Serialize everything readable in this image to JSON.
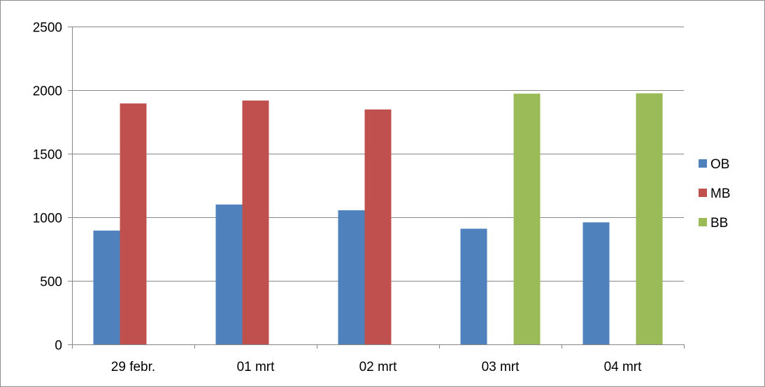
{
  "chart_data": {
    "type": "bar",
    "title": "",
    "xlabel": "",
    "ylabel": "",
    "categories": [
      "29 febr.",
      "01 mrt",
      "02 mrt",
      "03 mrt",
      "04 mrt"
    ],
    "series": [
      {
        "name": "OB",
        "color": "#4f81bd",
        "values": [
          895,
          1100,
          1055,
          910,
          960
        ]
      },
      {
        "name": "MB",
        "color": "#c0504d",
        "values": [
          1895,
          1918,
          1848,
          null,
          null
        ]
      },
      {
        "name": "BB",
        "color": "#9bbb59",
        "values": [
          null,
          null,
          null,
          1972,
          1975
        ]
      }
    ],
    "ylim": [
      0,
      2500
    ],
    "yticks": [
      "0",
      "500",
      "1000",
      "1500",
      "2000",
      "2500"
    ],
    "grid": true,
    "legend_position": "right"
  }
}
